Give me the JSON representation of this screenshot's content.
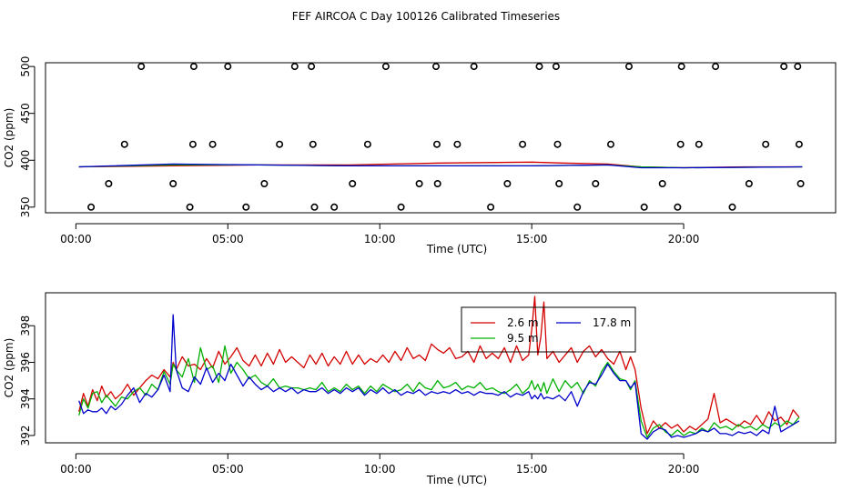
{
  "title": "FEF AIRCOA C  Day 100126  Calibrated Timeseries",
  "chart_data": [
    {
      "type": "scatter",
      "xlabel": "Time (UTC)",
      "ylabel": "CO2 (ppm)",
      "xlim": [
        -1.0,
        25.0
      ],
      "ylim": [
        344,
        504
      ],
      "x_ticks": [
        0,
        5,
        10,
        15,
        20
      ],
      "x_tick_labels": [
        "00:00",
        "05:00",
        "10:00",
        "15:00",
        "20:00"
      ],
      "y_ticks": [
        350,
        400,
        450,
        500
      ],
      "y_tick_labels": [
        "350",
        "400",
        "450",
        "500"
      ],
      "grid": false,
      "points": {
        "marker": "open-circle",
        "color": "#000000",
        "x": [
          0.5,
          1.08,
          1.6,
          2.15,
          3.2,
          3.75,
          3.85,
          3.88,
          4.5,
          5.0,
          5.6,
          6.2,
          6.7,
          7.2,
          7.75,
          7.8,
          7.85,
          8.5,
          9.1,
          9.6,
          10.2,
          10.7,
          11.3,
          11.85,
          11.88,
          11.9,
          12.55,
          13.1,
          13.65,
          14.2,
          14.7,
          15.25,
          15.8,
          15.85,
          15.9,
          16.5,
          17.1,
          17.6,
          18.2,
          18.7,
          19.3,
          19.8,
          19.9,
          19.93,
          20.5,
          21.05,
          21.6,
          22.15,
          22.7,
          23.3,
          23.75,
          23.8,
          23.85
        ],
        "y": [
          350,
          375,
          417,
          500,
          375,
          350,
          417,
          500,
          417,
          500,
          350,
          375,
          417,
          500,
          500,
          417,
          350,
          350,
          375,
          417,
          500,
          350,
          375,
          500,
          417,
          375,
          417,
          500,
          350,
          375,
          417,
          500,
          500,
          417,
          375,
          350,
          375,
          417,
          500,
          350,
          375,
          350,
          417,
          500,
          417,
          500,
          350,
          375,
          417,
          500,
          500,
          417,
          375
        ]
      },
      "series": [
        {
          "color": "#d40000",
          "x": [
            0.1,
            3.2,
            6.0,
            9.0,
            12.0,
            15.0,
            16.0,
            17.5,
            18.6,
            20.0,
            22.0,
            23.9
          ],
          "values": [
            393,
            394,
            395,
            395,
            397,
            398,
            397,
            396,
            393,
            392,
            393,
            393
          ]
        },
        {
          "color": "#00b000",
          "x": [
            0.1,
            3.2,
            6.0,
            9.0,
            12.0,
            15.0,
            17.5,
            18.6,
            20.0,
            23.9
          ],
          "values": [
            393,
            395,
            395,
            394,
            394,
            394,
            395,
            393,
            392,
            393
          ]
        },
        {
          "color": "#0000cc",
          "x": [
            0.1,
            3.2,
            6.0,
            9.0,
            12.0,
            15.0,
            17.5,
            18.6,
            20.0,
            23.9
          ],
          "values": [
            393,
            396,
            395,
            394,
            394,
            394,
            395,
            392,
            392,
            393
          ]
        }
      ]
    },
    {
      "type": "line",
      "xlabel": "Time (UTC)",
      "ylabel": "CO2 (ppm)",
      "xlim": [
        -1.0,
        25.0
      ],
      "ylim": [
        391.6,
        399.8
      ],
      "x_ticks": [
        0,
        5,
        10,
        15,
        20
      ],
      "x_tick_labels": [
        "00:00",
        "05:00",
        "10:00",
        "15:00",
        "20:00"
      ],
      "y_ticks": [
        392,
        394,
        396,
        398
      ],
      "y_tick_labels": [
        "392",
        "394",
        "396",
        "398"
      ],
      "grid": false,
      "legend_position": "top-center",
      "series": [
        {
          "name": "2.6 m",
          "color": "#d40000",
          "x": [
            0.1,
            0.25,
            0.4,
            0.55,
            0.7,
            0.85,
            1.0,
            1.15,
            1.3,
            1.5,
            1.7,
            1.9,
            2.1,
            2.3,
            2.5,
            2.7,
            2.9,
            3.1,
            3.2,
            3.3,
            3.5,
            3.7,
            3.9,
            4.1,
            4.3,
            4.5,
            4.7,
            4.9,
            5.1,
            5.3,
            5.5,
            5.7,
            5.9,
            6.1,
            6.3,
            6.5,
            6.7,
            6.9,
            7.1,
            7.3,
            7.5,
            7.7,
            7.9,
            8.1,
            8.3,
            8.5,
            8.7,
            8.9,
            9.1,
            9.3,
            9.5,
            9.7,
            9.9,
            10.1,
            10.3,
            10.5,
            10.7,
            10.9,
            11.1,
            11.3,
            11.5,
            11.7,
            11.9,
            12.1,
            12.3,
            12.5,
            12.7,
            12.9,
            13.1,
            13.3,
            13.5,
            13.7,
            13.9,
            14.1,
            14.3,
            14.5,
            14.7,
            14.9,
            15.0,
            15.1,
            15.2,
            15.3,
            15.4,
            15.5,
            15.7,
            15.9,
            16.1,
            16.3,
            16.5,
            16.7,
            16.9,
            17.1,
            17.3,
            17.5,
            17.7,
            17.9,
            18.1,
            18.25,
            18.4,
            18.6,
            18.8,
            19.0,
            19.2,
            19.4,
            19.6,
            19.8,
            20.0,
            20.2,
            20.4,
            20.6,
            20.8,
            21.0,
            21.2,
            21.4,
            21.6,
            21.8,
            22.0,
            22.2,
            22.4,
            22.6,
            22.8,
            23.0,
            23.2,
            23.4,
            23.6,
            23.8
          ],
          "values": [
            393.3,
            394.3,
            393.6,
            394.5,
            393.9,
            394.7,
            394.1,
            394.4,
            394.0,
            394.3,
            394.8,
            394.2,
            394.6,
            395.0,
            395.3,
            395.1,
            395.6,
            395.2,
            396.0,
            395.6,
            396.3,
            395.8,
            395.9,
            395.6,
            396.2,
            395.7,
            396.6,
            395.9,
            396.3,
            396.8,
            396.1,
            395.8,
            396.4,
            395.8,
            396.5,
            395.9,
            396.7,
            396.0,
            396.3,
            396.0,
            395.7,
            396.4,
            395.9,
            396.5,
            395.8,
            396.3,
            395.9,
            396.6,
            395.9,
            396.4,
            395.9,
            396.2,
            396.0,
            396.4,
            396.0,
            396.6,
            396.1,
            396.8,
            396.2,
            396.4,
            396.1,
            397.0,
            396.7,
            396.5,
            396.8,
            396.2,
            396.3,
            396.6,
            396.0,
            396.9,
            396.2,
            396.5,
            396.2,
            396.8,
            396.0,
            396.9,
            396.1,
            396.4,
            397.8,
            399.6,
            396.4,
            397.4,
            399.3,
            396.2,
            396.6,
            396.0,
            396.4,
            396.8,
            396.0,
            396.6,
            396.9,
            396.3,
            396.7,
            396.2,
            395.9,
            396.6,
            395.6,
            396.3,
            395.6,
            393.5,
            392.1,
            392.8,
            392.4,
            392.7,
            392.4,
            392.6,
            392.2,
            392.5,
            392.3,
            392.6,
            392.9,
            394.3,
            392.7,
            392.9,
            392.7,
            392.5,
            392.8,
            392.6,
            393.1,
            392.6,
            393.3,
            392.8,
            393.0,
            392.6,
            393.4,
            393.0
          ]
        },
        {
          "name": "9.5 m",
          "color": "#00b000",
          "x": [
            0.1,
            0.25,
            0.4,
            0.55,
            0.7,
            0.85,
            1.0,
            1.15,
            1.3,
            1.5,
            1.7,
            1.9,
            2.1,
            2.3,
            2.5,
            2.7,
            2.9,
            3.1,
            3.2,
            3.3,
            3.5,
            3.7,
            3.9,
            4.1,
            4.3,
            4.5,
            4.7,
            4.9,
            5.1,
            5.3,
            5.5,
            5.7,
            5.9,
            6.1,
            6.3,
            6.5,
            6.7,
            6.9,
            7.1,
            7.3,
            7.5,
            7.7,
            7.9,
            8.1,
            8.3,
            8.5,
            8.7,
            8.9,
            9.1,
            9.3,
            9.5,
            9.7,
            9.9,
            10.1,
            10.3,
            10.5,
            10.7,
            10.9,
            11.1,
            11.3,
            11.5,
            11.7,
            11.9,
            12.1,
            12.3,
            12.5,
            12.7,
            12.9,
            13.1,
            13.3,
            13.5,
            13.7,
            13.9,
            14.1,
            14.3,
            14.5,
            14.7,
            14.9,
            15.0,
            15.1,
            15.2,
            15.3,
            15.4,
            15.5,
            15.7,
            15.9,
            16.1,
            16.3,
            16.5,
            16.7,
            16.9,
            17.1,
            17.3,
            17.5,
            17.7,
            17.9,
            18.1,
            18.25,
            18.4,
            18.6,
            18.8,
            19.0,
            19.2,
            19.4,
            19.6,
            19.8,
            20.0,
            20.2,
            20.4,
            20.6,
            20.8,
            21.0,
            21.2,
            21.4,
            21.6,
            21.8,
            22.0,
            22.2,
            22.4,
            22.6,
            22.8,
            23.0,
            23.2,
            23.4,
            23.6,
            23.8
          ],
          "values": [
            393.1,
            394.0,
            393.5,
            394.3,
            394.4,
            393.8,
            394.2,
            393.9,
            393.6,
            394.1,
            394.0,
            394.4,
            394.6,
            394.2,
            394.8,
            394.5,
            395.5,
            394.8,
            395.9,
            395.6,
            395.2,
            396.2,
            394.9,
            396.8,
            395.6,
            395.8,
            394.9,
            396.9,
            395.4,
            396.0,
            395.6,
            395.1,
            395.3,
            394.9,
            394.7,
            395.1,
            394.6,
            394.7,
            394.6,
            394.6,
            394.5,
            394.6,
            394.5,
            394.9,
            394.4,
            394.6,
            394.4,
            394.8,
            394.5,
            394.7,
            394.3,
            394.7,
            394.4,
            394.8,
            394.6,
            394.4,
            394.5,
            394.8,
            394.4,
            394.9,
            394.6,
            394.5,
            395.0,
            394.6,
            394.7,
            394.9,
            394.5,
            394.7,
            394.6,
            394.9,
            394.5,
            394.6,
            394.4,
            394.3,
            394.5,
            394.8,
            394.3,
            394.6,
            395.0,
            394.5,
            394.8,
            394.4,
            394.9,
            394.3,
            395.1,
            394.4,
            395.0,
            394.6,
            394.9,
            394.3,
            395.0,
            394.7,
            395.5,
            396.0,
            395.5,
            395.1,
            395.0,
            394.5,
            395.0,
            392.8,
            391.9,
            392.4,
            392.6,
            392.2,
            392.0,
            392.3,
            392.0,
            392.2,
            392.1,
            392.4,
            392.2,
            392.7,
            392.4,
            392.5,
            392.3,
            392.6,
            392.4,
            392.5,
            392.3,
            392.6,
            392.4,
            392.7,
            392.5,
            392.8,
            392.6,
            393.0
          ]
        },
        {
          "name": "17.8 m",
          "color": "#0000cc",
          "x": [
            0.1,
            0.25,
            0.4,
            0.55,
            0.7,
            0.85,
            1.0,
            1.15,
            1.3,
            1.5,
            1.7,
            1.9,
            2.1,
            2.3,
            2.5,
            2.7,
            2.9,
            3.1,
            3.2,
            3.3,
            3.5,
            3.7,
            3.9,
            4.1,
            4.3,
            4.5,
            4.7,
            4.9,
            5.1,
            5.3,
            5.5,
            5.7,
            5.9,
            6.1,
            6.3,
            6.5,
            6.7,
            6.9,
            7.1,
            7.3,
            7.5,
            7.7,
            7.9,
            8.1,
            8.3,
            8.5,
            8.7,
            8.9,
            9.1,
            9.3,
            9.5,
            9.7,
            9.9,
            10.1,
            10.3,
            10.5,
            10.7,
            10.9,
            11.1,
            11.3,
            11.5,
            11.7,
            11.9,
            12.1,
            12.3,
            12.5,
            12.7,
            12.9,
            13.1,
            13.3,
            13.5,
            13.7,
            13.9,
            14.1,
            14.3,
            14.5,
            14.7,
            14.9,
            15.0,
            15.1,
            15.2,
            15.3,
            15.4,
            15.5,
            15.7,
            15.9,
            16.1,
            16.3,
            16.5,
            16.7,
            16.9,
            17.1,
            17.3,
            17.5,
            17.7,
            17.9,
            18.1,
            18.25,
            18.4,
            18.6,
            18.8,
            19.0,
            19.2,
            19.4,
            19.6,
            19.8,
            20.0,
            20.2,
            20.4,
            20.6,
            20.8,
            21.0,
            21.2,
            21.4,
            21.6,
            21.8,
            22.0,
            22.2,
            22.4,
            22.6,
            22.8,
            23.0,
            23.2,
            23.4,
            23.6,
            23.8
          ],
          "values": [
            393.9,
            393.2,
            393.4,
            393.3,
            393.3,
            393.5,
            393.2,
            393.6,
            393.4,
            393.7,
            394.2,
            394.6,
            393.8,
            394.3,
            394.1,
            394.5,
            395.3,
            394.4,
            398.6,
            395.6,
            394.6,
            394.4,
            395.2,
            394.8,
            395.7,
            394.9,
            395.4,
            395.0,
            395.9,
            395.3,
            394.7,
            395.2,
            394.8,
            394.5,
            394.7,
            394.4,
            394.6,
            394.4,
            394.6,
            394.3,
            394.5,
            394.4,
            394.4,
            394.6,
            394.3,
            394.5,
            394.3,
            394.6,
            394.4,
            394.6,
            394.2,
            394.5,
            394.3,
            394.6,
            394.3,
            394.5,
            394.2,
            394.4,
            394.3,
            394.5,
            394.2,
            394.4,
            394.3,
            394.4,
            394.3,
            394.5,
            394.3,
            394.4,
            394.2,
            394.4,
            394.3,
            394.3,
            394.2,
            394.4,
            394.1,
            394.3,
            394.2,
            394.4,
            394.0,
            394.2,
            394.0,
            394.3,
            394.0,
            394.1,
            394.0,
            394.2,
            393.9,
            394.4,
            393.6,
            394.4,
            394.9,
            394.8,
            395.3,
            395.9,
            395.4,
            395.0,
            395.0,
            394.6,
            394.9,
            392.1,
            391.8,
            392.2,
            392.4,
            392.3,
            391.9,
            392.0,
            391.9,
            392.0,
            392.1,
            392.3,
            392.2,
            392.4,
            392.1,
            392.1,
            392.0,
            392.2,
            392.1,
            392.2,
            392.0,
            392.3,
            392.1,
            393.6,
            392.2,
            392.4,
            392.6,
            392.8
          ]
        }
      ]
    }
  ]
}
